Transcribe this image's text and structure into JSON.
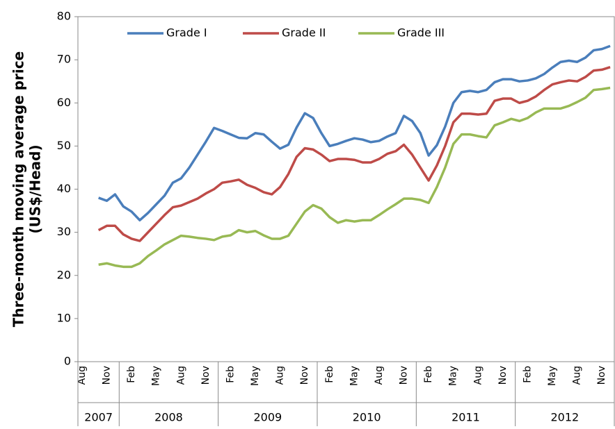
{
  "chart_data": {
    "type": "line",
    "y_label_lines": [
      "Three-month moving average price",
      "(US$/Head)"
    ],
    "categories": [
      "Aug",
      null,
      null,
      "Nov",
      null,
      null,
      "Feb",
      null,
      null,
      "May",
      null,
      null,
      "Aug",
      null,
      null,
      "Nov",
      null,
      null,
      "Feb",
      null,
      null,
      "May",
      null,
      null,
      "Aug",
      null,
      null,
      "Nov",
      null,
      null,
      "Feb",
      null,
      null,
      "May",
      null,
      null,
      "Aug",
      null,
      null,
      "Nov",
      null,
      null,
      "Feb",
      null,
      null,
      "May",
      null,
      null,
      "Aug",
      null,
      null,
      "Nov",
      null,
      null,
      "Feb",
      null,
      null,
      "May",
      null,
      null,
      "Aug",
      null,
      null,
      "Nov",
      null
    ],
    "years": [
      "2007",
      "2008",
      "2009",
      "2010",
      "2011",
      "2012"
    ],
    "series": [
      {
        "name": "Grade I",
        "color": "#4a7ebb",
        "values": [
          null,
          null,
          38,
          37.3,
          38.8,
          36,
          34.8,
          32.8,
          34.5,
          36.5,
          38.5,
          41.5,
          42.5,
          45,
          48,
          51,
          54.2,
          53.5,
          52.7,
          51.9,
          51.8,
          53,
          52.7,
          51,
          49.4,
          50.3,
          54.3,
          57.6,
          56.5,
          53,
          50,
          50.5,
          51.2,
          51.8,
          51.5,
          50.9,
          51.2,
          52.2,
          53,
          57,
          55.8,
          53,
          47.8,
          50.2,
          54.5,
          60,
          62.5,
          62.8,
          62.5,
          63,
          64.8,
          65.5,
          65.5,
          65,
          65.2,
          65.7,
          66.7,
          68.2,
          69.5,
          69.8,
          69.5,
          70.5,
          72.2,
          72.5,
          73.2
        ]
      },
      {
        "name": "Grade II",
        "color": "#be4b48",
        "values": [
          null,
          null,
          30.5,
          31.5,
          31.5,
          29.5,
          28.5,
          28,
          30,
          32,
          34,
          35.8,
          36.2,
          37,
          37.8,
          39,
          40,
          41.5,
          41.8,
          42.2,
          41,
          40.3,
          39.3,
          38.8,
          40.5,
          43.5,
          47.5,
          49.5,
          49.2,
          48,
          46.5,
          47,
          47,
          46.8,
          46.2,
          46.2,
          47,
          48.2,
          48.8,
          50.3,
          48,
          45,
          42,
          45.5,
          50,
          55.5,
          57.5,
          57.5,
          57.3,
          57.5,
          60.5,
          61,
          61,
          60,
          60.5,
          61.5,
          63,
          64.3,
          64.8,
          65.2,
          65,
          66,
          67.5,
          67.7,
          68.3
        ]
      },
      {
        "name": "Grade III",
        "color": "#98b954",
        "values": [
          null,
          null,
          22.5,
          22.8,
          22.3,
          22,
          22,
          22.8,
          24.5,
          25.8,
          27.2,
          28.2,
          29.2,
          29,
          28.7,
          28.5,
          28.2,
          29,
          29.3,
          30.5,
          30,
          30.3,
          29.3,
          28.5,
          28.5,
          29.2,
          32,
          34.8,
          36.3,
          35.5,
          33.5,
          32.2,
          32.8,
          32.5,
          32.8,
          32.8,
          34,
          35.3,
          36.5,
          37.8,
          37.8,
          37.5,
          36.8,
          40.5,
          45,
          50.5,
          52.7,
          52.7,
          52.3,
          52,
          54.8,
          55.5,
          56.3,
          55.8,
          56.5,
          57.8,
          58.7,
          58.7,
          58.7,
          59.3,
          60.2,
          61.2,
          63,
          63.2,
          63.5
        ]
      }
    ],
    "ylim": [
      0,
      80
    ],
    "yticks": [
      0,
      10,
      20,
      30,
      40,
      50,
      60,
      70,
      80
    ]
  }
}
